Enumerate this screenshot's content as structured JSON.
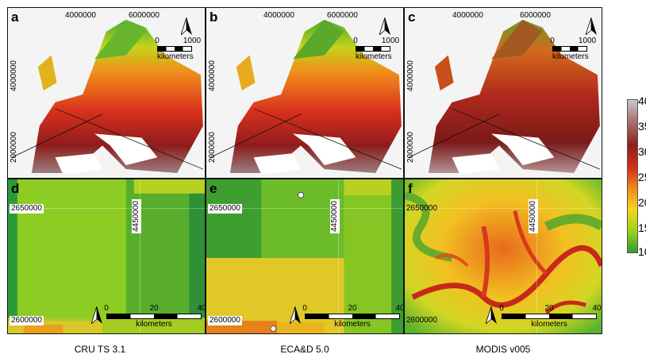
{
  "panels_top": [
    {
      "letter": "a",
      "x_ticks": [
        "4000000",
        "6000000"
      ],
      "y_ticks": [
        "4000000",
        "2000000"
      ],
      "scale_ticks": [
        "0",
        "1000"
      ],
      "scale_unit": "kilometers"
    },
    {
      "letter": "b",
      "x_ticks": [
        "4000000",
        "6000000"
      ],
      "y_ticks": [
        "4000000",
        "2000000"
      ],
      "scale_ticks": [
        "0",
        "1000"
      ],
      "scale_unit": "kilometers"
    },
    {
      "letter": "c",
      "x_ticks": [
        "4000000",
        "6000000"
      ],
      "y_ticks": [
        "4000000",
        "2000000"
      ],
      "scale_ticks": [
        "0",
        "1000"
      ],
      "scale_unit": "kilometers"
    }
  ],
  "panels_bottom": [
    {
      "letter": "d",
      "x_tick": "4450000",
      "y_ticks": [
        "2650000",
        "2600000"
      ],
      "scale_ticks": [
        "0",
        "20",
        "40"
      ],
      "scale_unit": "kilometers"
    },
    {
      "letter": "e",
      "x_tick": "4450000",
      "y_ticks": [
        "2650000",
        "2600000"
      ],
      "scale_ticks": [
        "0",
        "20",
        "40"
      ],
      "scale_unit": "kilometers"
    },
    {
      "letter": "f",
      "x_tick": "4450000",
      "y_ticks": [
        "2650000",
        "2600000"
      ],
      "scale_ticks": [
        "0",
        "20",
        "40"
      ],
      "scale_unit": "kilometers"
    }
  ],
  "captions": [
    "CRU TS 3.1",
    "ECA&D 5.0",
    "MODIS v005"
  ],
  "legend": {
    "ticks": [
      "40",
      "35",
      "30",
      "25",
      "20",
      "15",
      "10"
    ],
    "colors": [
      "#c9c9c9",
      "#b07a7a",
      "#8e1c1c",
      "#d8301c",
      "#ef8a1c",
      "#f3d61c",
      "#9bd21c",
      "#2f9a2f"
    ]
  }
}
